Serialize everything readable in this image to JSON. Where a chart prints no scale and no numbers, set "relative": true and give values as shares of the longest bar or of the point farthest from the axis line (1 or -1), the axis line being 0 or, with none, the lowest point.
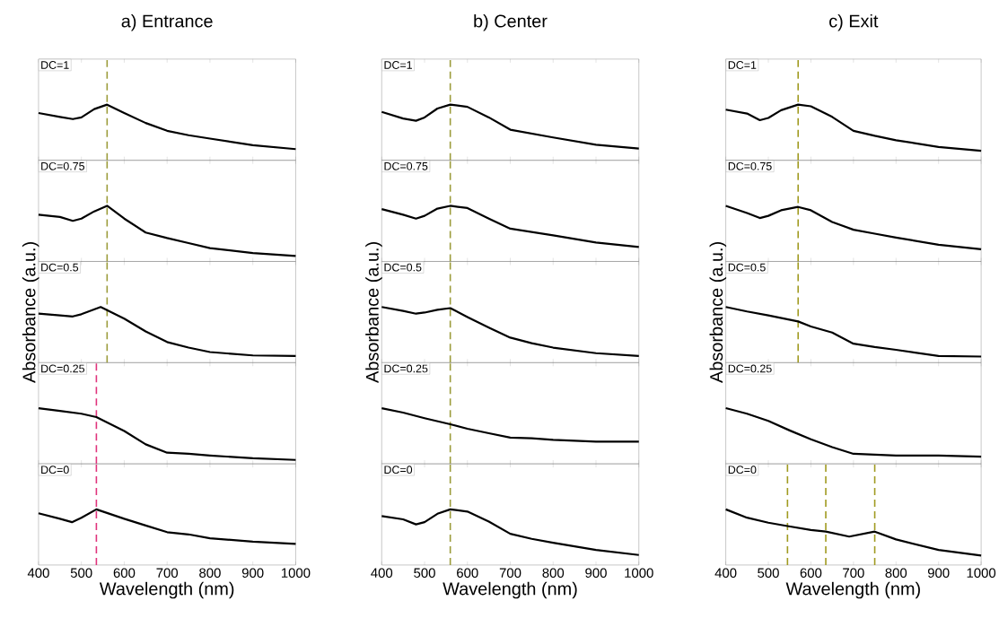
{
  "chart_data": [
    {
      "type": "line",
      "relative": true,
      "title": "a) Entrance",
      "annotations": [
        "DC=1"
      ],
      "x": [
        400,
        450,
        480,
        500,
        530,
        560,
        600,
        650,
        700,
        750,
        800,
        900,
        1000
      ],
      "values": [
        0.85,
        0.78,
        0.74,
        0.77,
        0.92,
        1,
        0.85,
        0.67,
        0.53,
        0.45,
        0.39,
        0.27,
        0.2
      ],
      "color": "#000000",
      "xlim": [
        400,
        1000
      ],
      "xticks": [
        400,
        500,
        600,
        700,
        800,
        900,
        1000
      ],
      "tick_labels": false,
      "ref_lines": [
        {
          "axis": "x",
          "value": 560,
          "color": "#9c9c3c",
          "line_style": "dashed"
        }
      ]
    },
    {
      "type": "line",
      "relative": true,
      "annotations": [
        "DC=0.75"
      ],
      "x": [
        400,
        450,
        480,
        500,
        530,
        560,
        600,
        650,
        700,
        750,
        800,
        900,
        1000
      ],
      "values": [
        0.84,
        0.8,
        0.73,
        0.77,
        0.9,
        1,
        0.77,
        0.52,
        0.42,
        0.33,
        0.24,
        0.15,
        0.1
      ],
      "color": "#000000",
      "xlim": [
        400,
        1000
      ],
      "xticks": [
        400,
        500,
        600,
        700,
        800,
        900,
        1000
      ],
      "tick_labels": false,
      "ref_lines": [
        {
          "axis": "x",
          "value": 560,
          "color": "#9c9c3c",
          "line_style": "dashed"
        }
      ]
    },
    {
      "type": "line",
      "relative": true,
      "ylabel": "Absorbance (a.u.)",
      "annotations": [
        "DC=0.5"
      ],
      "x": [
        400,
        450,
        480,
        500,
        545,
        600,
        650,
        700,
        750,
        800,
        900,
        1000
      ],
      "values": [
        0.88,
        0.85,
        0.83,
        0.87,
        1,
        0.79,
        0.56,
        0.37,
        0.27,
        0.19,
        0.13,
        0.12
      ],
      "color": "#000000",
      "xlim": [
        400,
        1000
      ],
      "xticks": [
        400,
        500,
        600,
        700,
        800,
        900,
        1000
      ],
      "tick_labels": false,
      "ref_lines": [
        {
          "axis": "x",
          "value": 560,
          "color": "#9c9c3c",
          "line_style": "dashed"
        }
      ]
    },
    {
      "type": "line",
      "relative": true,
      "annotations": [
        "DC=0.25"
      ],
      "x": [
        400,
        450,
        500,
        535,
        600,
        650,
        700,
        750,
        800,
        900,
        1000
      ],
      "values": [
        1,
        0.95,
        0.9,
        0.84,
        0.59,
        0.35,
        0.2,
        0.18,
        0.15,
        0.1,
        0.07
      ],
      "color": "#000000",
      "xlim": [
        400,
        1000
      ],
      "xticks": [
        400,
        500,
        600,
        700,
        800,
        900,
        1000
      ],
      "tick_labels": false,
      "ref_lines": [
        {
          "axis": "x",
          "value": 535,
          "color": "#e0347c",
          "line_style": "dashed"
        }
      ]
    },
    {
      "type": "line",
      "relative": true,
      "xlabel": "Wavelength (nm)",
      "annotations": [
        "DC=0"
      ],
      "x": [
        400,
        450,
        478,
        500,
        535,
        600,
        650,
        700,
        750,
        800,
        900,
        1000
      ],
      "values": [
        0.93,
        0.83,
        0.77,
        0.85,
        1,
        0.83,
        0.71,
        0.59,
        0.55,
        0.48,
        0.42,
        0.38
      ],
      "color": "#000000",
      "xlim": [
        400,
        1000
      ],
      "xticks": [
        400,
        500,
        600,
        700,
        800,
        900,
        1000
      ],
      "tick_labels": "x",
      "ref_lines": [
        {
          "axis": "x",
          "value": 535,
          "color": "#e0347c",
          "line_style": "dashed"
        }
      ]
    },
    {
      "type": "line",
      "relative": true,
      "title": "b) Center",
      "annotations": [
        "DC=1"
      ],
      "x": [
        400,
        450,
        480,
        500,
        530,
        560,
        600,
        650,
        700,
        800,
        900,
        1000
      ],
      "values": [
        0.87,
        0.75,
        0.71,
        0.77,
        0.93,
        1,
        0.96,
        0.77,
        0.55,
        0.41,
        0.28,
        0.21
      ],
      "color": "#000000",
      "xlim": [
        400,
        1000
      ],
      "xticks": [
        400,
        500,
        600,
        700,
        800,
        900,
        1000
      ],
      "tick_labels": false,
      "ref_lines": [
        {
          "axis": "x",
          "value": 560,
          "color": "#9c9c3c",
          "line_style": "dashed"
        }
      ]
    },
    {
      "type": "line",
      "relative": true,
      "annotations": [
        "DC=0.75"
      ],
      "x": [
        400,
        450,
        480,
        500,
        530,
        560,
        600,
        650,
        700,
        800,
        900,
        1000
      ],
      "values": [
        0.94,
        0.84,
        0.77,
        0.82,
        0.95,
        1,
        0.96,
        0.77,
        0.59,
        0.47,
        0.34,
        0.26
      ],
      "color": "#000000",
      "xlim": [
        400,
        1000
      ],
      "xticks": [
        400,
        500,
        600,
        700,
        800,
        900,
        1000
      ],
      "tick_labels": false,
      "ref_lines": [
        {
          "axis": "x",
          "value": 560,
          "color": "#9c9c3c",
          "line_style": "dashed"
        }
      ]
    },
    {
      "type": "line",
      "relative": true,
      "ylabel": "Absorbance (a.u.)",
      "annotations": [
        "DC=0.5"
      ],
      "x": [
        400,
        450,
        480,
        500,
        530,
        560,
        600,
        650,
        700,
        750,
        800,
        900,
        1000
      ],
      "values": [
        1,
        0.93,
        0.88,
        0.9,
        0.95,
        0.98,
        0.82,
        0.63,
        0.45,
        0.35,
        0.27,
        0.17,
        0.12
      ],
      "color": "#000000",
      "xlim": [
        400,
        1000
      ],
      "xticks": [
        400,
        500,
        600,
        700,
        800,
        900,
        1000
      ],
      "tick_labels": false,
      "ref_lines": [
        {
          "axis": "x",
          "value": 560,
          "color": "#9c9c3c",
          "line_style": "dashed"
        }
      ]
    },
    {
      "type": "line",
      "relative": true,
      "annotations": [
        "DC=0.25"
      ],
      "x": [
        400,
        450,
        500,
        560,
        600,
        650,
        700,
        750,
        800,
        900,
        1000
      ],
      "values": [
        1,
        0.92,
        0.82,
        0.71,
        0.63,
        0.55,
        0.47,
        0.46,
        0.43,
        0.4,
        0.4
      ],
      "color": "#000000",
      "xlim": [
        400,
        1000
      ],
      "xticks": [
        400,
        500,
        600,
        700,
        800,
        900,
        1000
      ],
      "tick_labels": false,
      "ref_lines": [
        {
          "axis": "x",
          "value": 560,
          "color": "#9c9c3c",
          "line_style": "dashed"
        }
      ]
    },
    {
      "type": "line",
      "relative": true,
      "xlabel": "Wavelength (nm)",
      "annotations": [
        "DC=0"
      ],
      "x": [
        400,
        450,
        480,
        500,
        530,
        560,
        600,
        650,
        700,
        750,
        800,
        900,
        1000
      ],
      "values": [
        0.88,
        0.82,
        0.73,
        0.77,
        0.92,
        1,
        0.96,
        0.78,
        0.56,
        0.47,
        0.4,
        0.27,
        0.18
      ],
      "color": "#000000",
      "xlim": [
        400,
        1000
      ],
      "xticks": [
        400,
        500,
        600,
        700,
        800,
        900,
        1000
      ],
      "tick_labels": "x",
      "ref_lines": [
        {
          "axis": "x",
          "value": 560,
          "color": "#9c9c3c",
          "line_style": "dashed"
        }
      ]
    },
    {
      "type": "line",
      "relative": true,
      "title": "c) Exit",
      "annotations": [
        "DC=1"
      ],
      "x": [
        400,
        450,
        480,
        500,
        530,
        570,
        600,
        650,
        700,
        750,
        800,
        900,
        1000
      ],
      "values": [
        0.91,
        0.84,
        0.72,
        0.76,
        0.9,
        1,
        0.97,
        0.78,
        0.53,
        0.44,
        0.36,
        0.24,
        0.17
      ],
      "color": "#000000",
      "xlim": [
        400,
        1000
      ],
      "xticks": [
        400,
        500,
        600,
        700,
        800,
        900,
        1000
      ],
      "tick_labels": false,
      "ref_lines": [
        {
          "axis": "x",
          "value": 570,
          "color": "#a09a20",
          "line_style": "dashed"
        }
      ]
    },
    {
      "type": "line",
      "relative": true,
      "annotations": [
        "DC=0.75"
      ],
      "x": [
        400,
        450,
        480,
        500,
        530,
        570,
        600,
        650,
        700,
        750,
        800,
        900,
        1000
      ],
      "values": [
        1,
        0.87,
        0.78,
        0.82,
        0.92,
        0.98,
        0.92,
        0.71,
        0.57,
        0.5,
        0.43,
        0.3,
        0.22
      ],
      "color": "#000000",
      "xlim": [
        400,
        1000
      ],
      "xticks": [
        400,
        500,
        600,
        700,
        800,
        900,
        1000
      ],
      "tick_labels": false,
      "ref_lines": [
        {
          "axis": "x",
          "value": 570,
          "color": "#a09a20",
          "line_style": "dashed"
        }
      ]
    },
    {
      "type": "line",
      "relative": true,
      "ylabel": "Absorbance (a.u.)",
      "annotations": [
        "DC=0.5"
      ],
      "x": [
        400,
        450,
        500,
        570,
        600,
        650,
        700,
        750,
        800,
        900,
        1000
      ],
      "values": [
        1,
        0.92,
        0.85,
        0.74,
        0.65,
        0.54,
        0.34,
        0.28,
        0.23,
        0.12,
        0.11
      ],
      "color": "#000000",
      "xlim": [
        400,
        1000
      ],
      "xticks": [
        400,
        500,
        600,
        700,
        800,
        900,
        1000
      ],
      "tick_labels": false,
      "ref_lines": [
        {
          "axis": "x",
          "value": 570,
          "color": "#a09a20",
          "line_style": "dashed"
        }
      ]
    },
    {
      "type": "line",
      "relative": true,
      "annotations": [
        "DC=0.25"
      ],
      "x": [
        400,
        450,
        500,
        550,
        600,
        650,
        700,
        800,
        900,
        1000
      ],
      "values": [
        1,
        0.9,
        0.77,
        0.6,
        0.44,
        0.3,
        0.18,
        0.15,
        0.15,
        0.13
      ],
      "color": "#000000",
      "xlim": [
        400,
        1000
      ],
      "xticks": [
        400,
        500,
        600,
        700,
        800,
        900,
        1000
      ],
      "tick_labels": false
    },
    {
      "type": "line",
      "relative": true,
      "xlabel": "Wavelength (nm)",
      "annotations": [
        "DC=0"
      ],
      "x": [
        400,
        450,
        500,
        545,
        600,
        635,
        690,
        750,
        800,
        900,
        1000
      ],
      "values": [
        1,
        0.85,
        0.76,
        0.7,
        0.63,
        0.6,
        0.51,
        0.6,
        0.46,
        0.27,
        0.17
      ],
      "color": "#000000",
      "xlim": [
        400,
        1000
      ],
      "xticks": [
        400,
        500,
        600,
        700,
        800,
        900,
        1000
      ],
      "tick_labels": "x",
      "ref_lines": [
        {
          "axis": "x",
          "value": 545,
          "color": "#a09a20",
          "line_style": "dashed"
        },
        {
          "axis": "x",
          "value": 635,
          "color": "#a09a20",
          "line_style": "dashed"
        },
        {
          "axis": "x",
          "value": 750,
          "color": "#a09a20",
          "line_style": "dashed"
        }
      ]
    }
  ]
}
